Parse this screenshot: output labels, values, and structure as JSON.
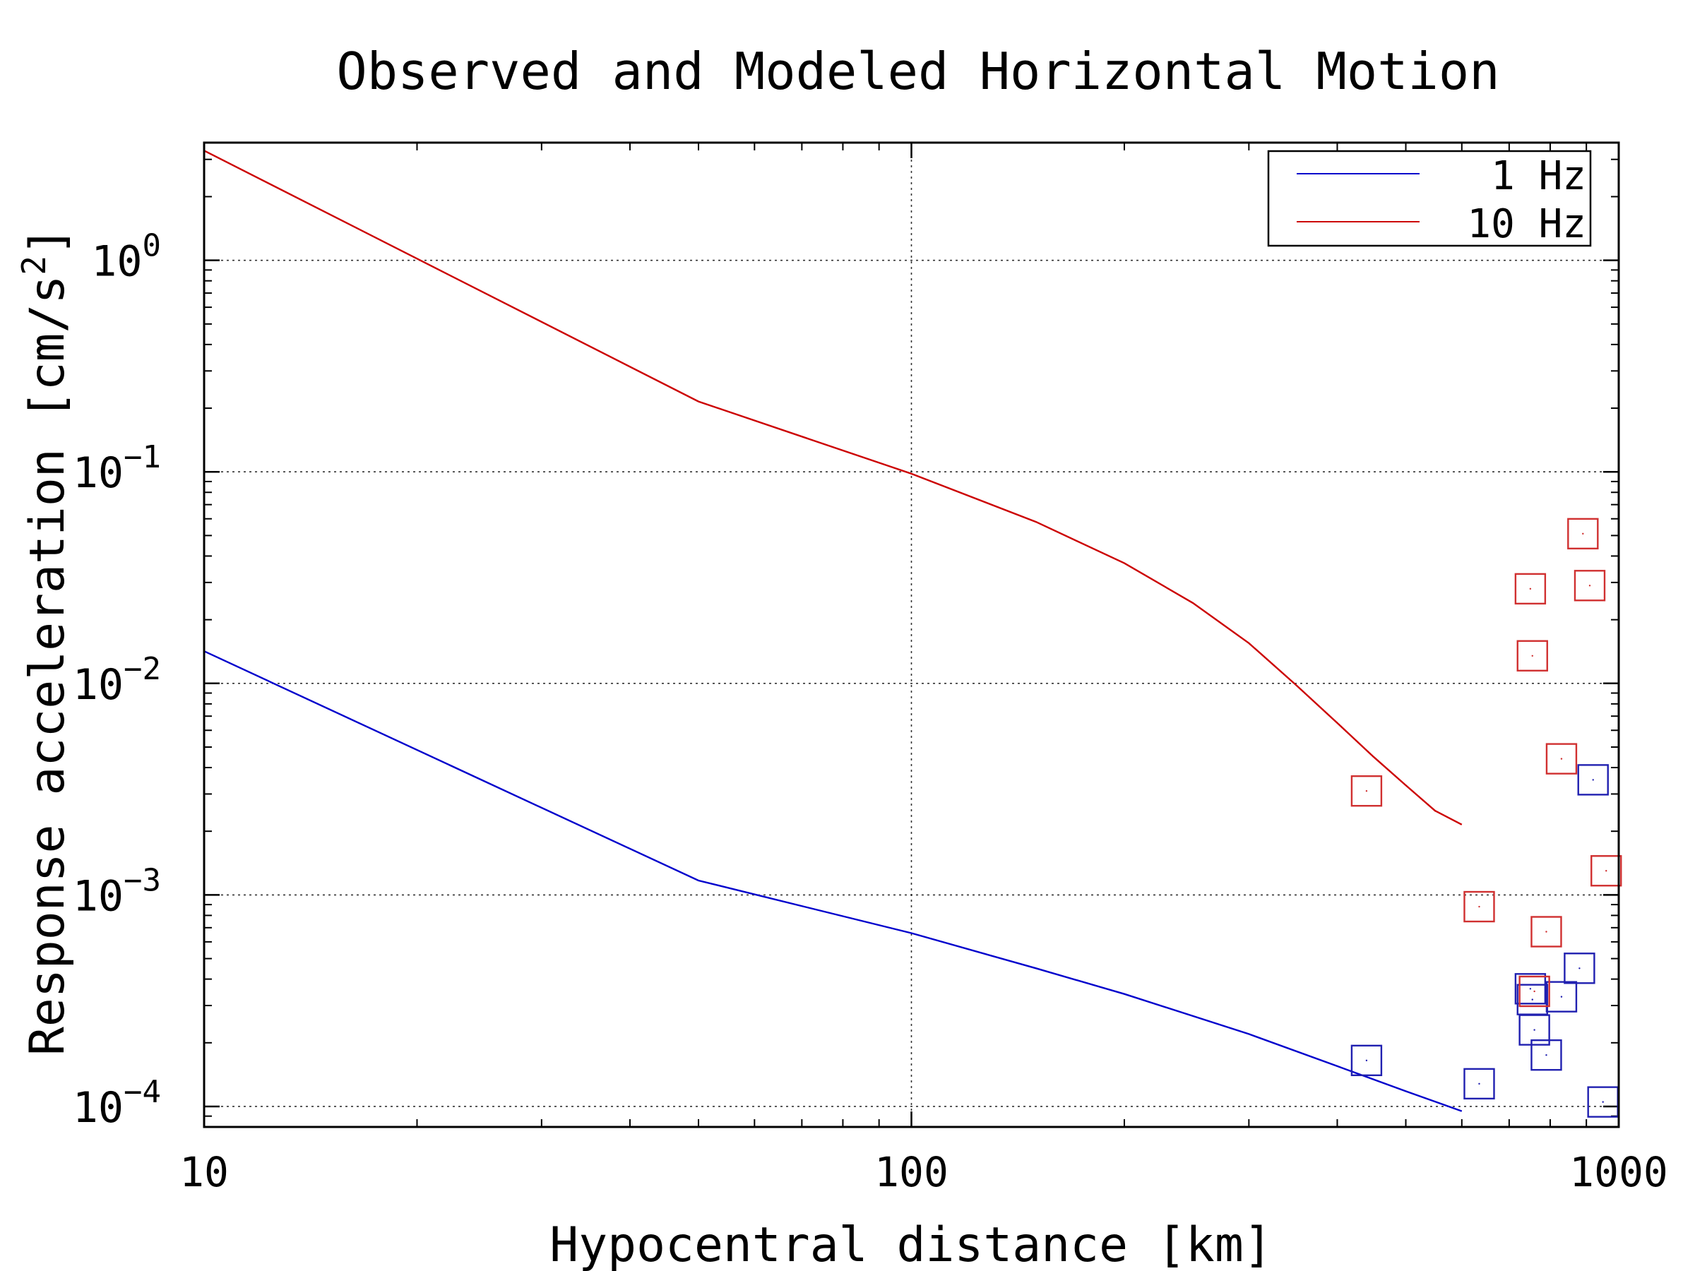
{
  "chart_data": {
    "type": "scatter",
    "title": "Observed and Modeled Horizontal Motion",
    "xlabel": "Hypocentral distance [km]",
    "ylabel": "Response acceleration [cm/s²]",
    "xscale": "log",
    "yscale": "log",
    "xlim": [
      10,
      1000
    ],
    "ylim": [
      8e-05,
      3.6
    ],
    "x_ticks": [
      10,
      100,
      1000
    ],
    "x_tick_labels": [
      "10",
      "100",
      "1000"
    ],
    "y_ticks": [
      0.0001,
      0.001,
      0.01,
      0.1,
      1
    ],
    "y_tick_labels": [
      {
        "base": "10",
        "exp": "−4"
      },
      {
        "base": "10",
        "exp": "−3"
      },
      {
        "base": "10",
        "exp": "−2"
      },
      {
        "base": "10",
        "exp": "−1"
      },
      {
        "base": "10",
        "exp": "0"
      }
    ],
    "grid": true,
    "legend_position": "top-right",
    "series": [
      {
        "name": "1 Hz",
        "kind": "line",
        "color": "#0000cc",
        "x": [
          10,
          50,
          100,
          150,
          200,
          300,
          400,
          500,
          600
        ],
        "y": [
          0.0142,
          0.00117,
          0.00066,
          0.00045,
          0.00034,
          0.00022,
          0.000155,
          0.000118,
          9.5e-05
        ]
      },
      {
        "name": "10 Hz",
        "kind": "line",
        "color": "#cc0000",
        "x": [
          10,
          50,
          100,
          150,
          200,
          250,
          300,
          350,
          400,
          450,
          500,
          550,
          600
        ],
        "y": [
          3.3,
          0.215,
          0.098,
          0.058,
          0.037,
          0.024,
          0.0155,
          0.0098,
          0.0065,
          0.0045,
          0.0033,
          0.0025,
          0.00215
        ]
      },
      {
        "name": "",
        "kind": "markers",
        "color": "#2020b0",
        "x": [
          440,
          635,
          750,
          755,
          760,
          790,
          830,
          880,
          920,
          950
        ],
        "y": [
          0.000165,
          0.000128,
          0.00036,
          0.00032,
          0.00023,
          0.000175,
          0.00033,
          0.00045,
          0.0035,
          0.000105
        ]
      },
      {
        "name": "",
        "kind": "markers",
        "color": "#d03030",
        "x": [
          440,
          635,
          750,
          755,
          760,
          790,
          830,
          890,
          910,
          960
        ],
        "y": [
          0.0031,
          0.00088,
          0.028,
          0.0135,
          0.00035,
          0.00067,
          0.0044,
          0.051,
          0.029,
          0.0013
        ]
      }
    ]
  }
}
